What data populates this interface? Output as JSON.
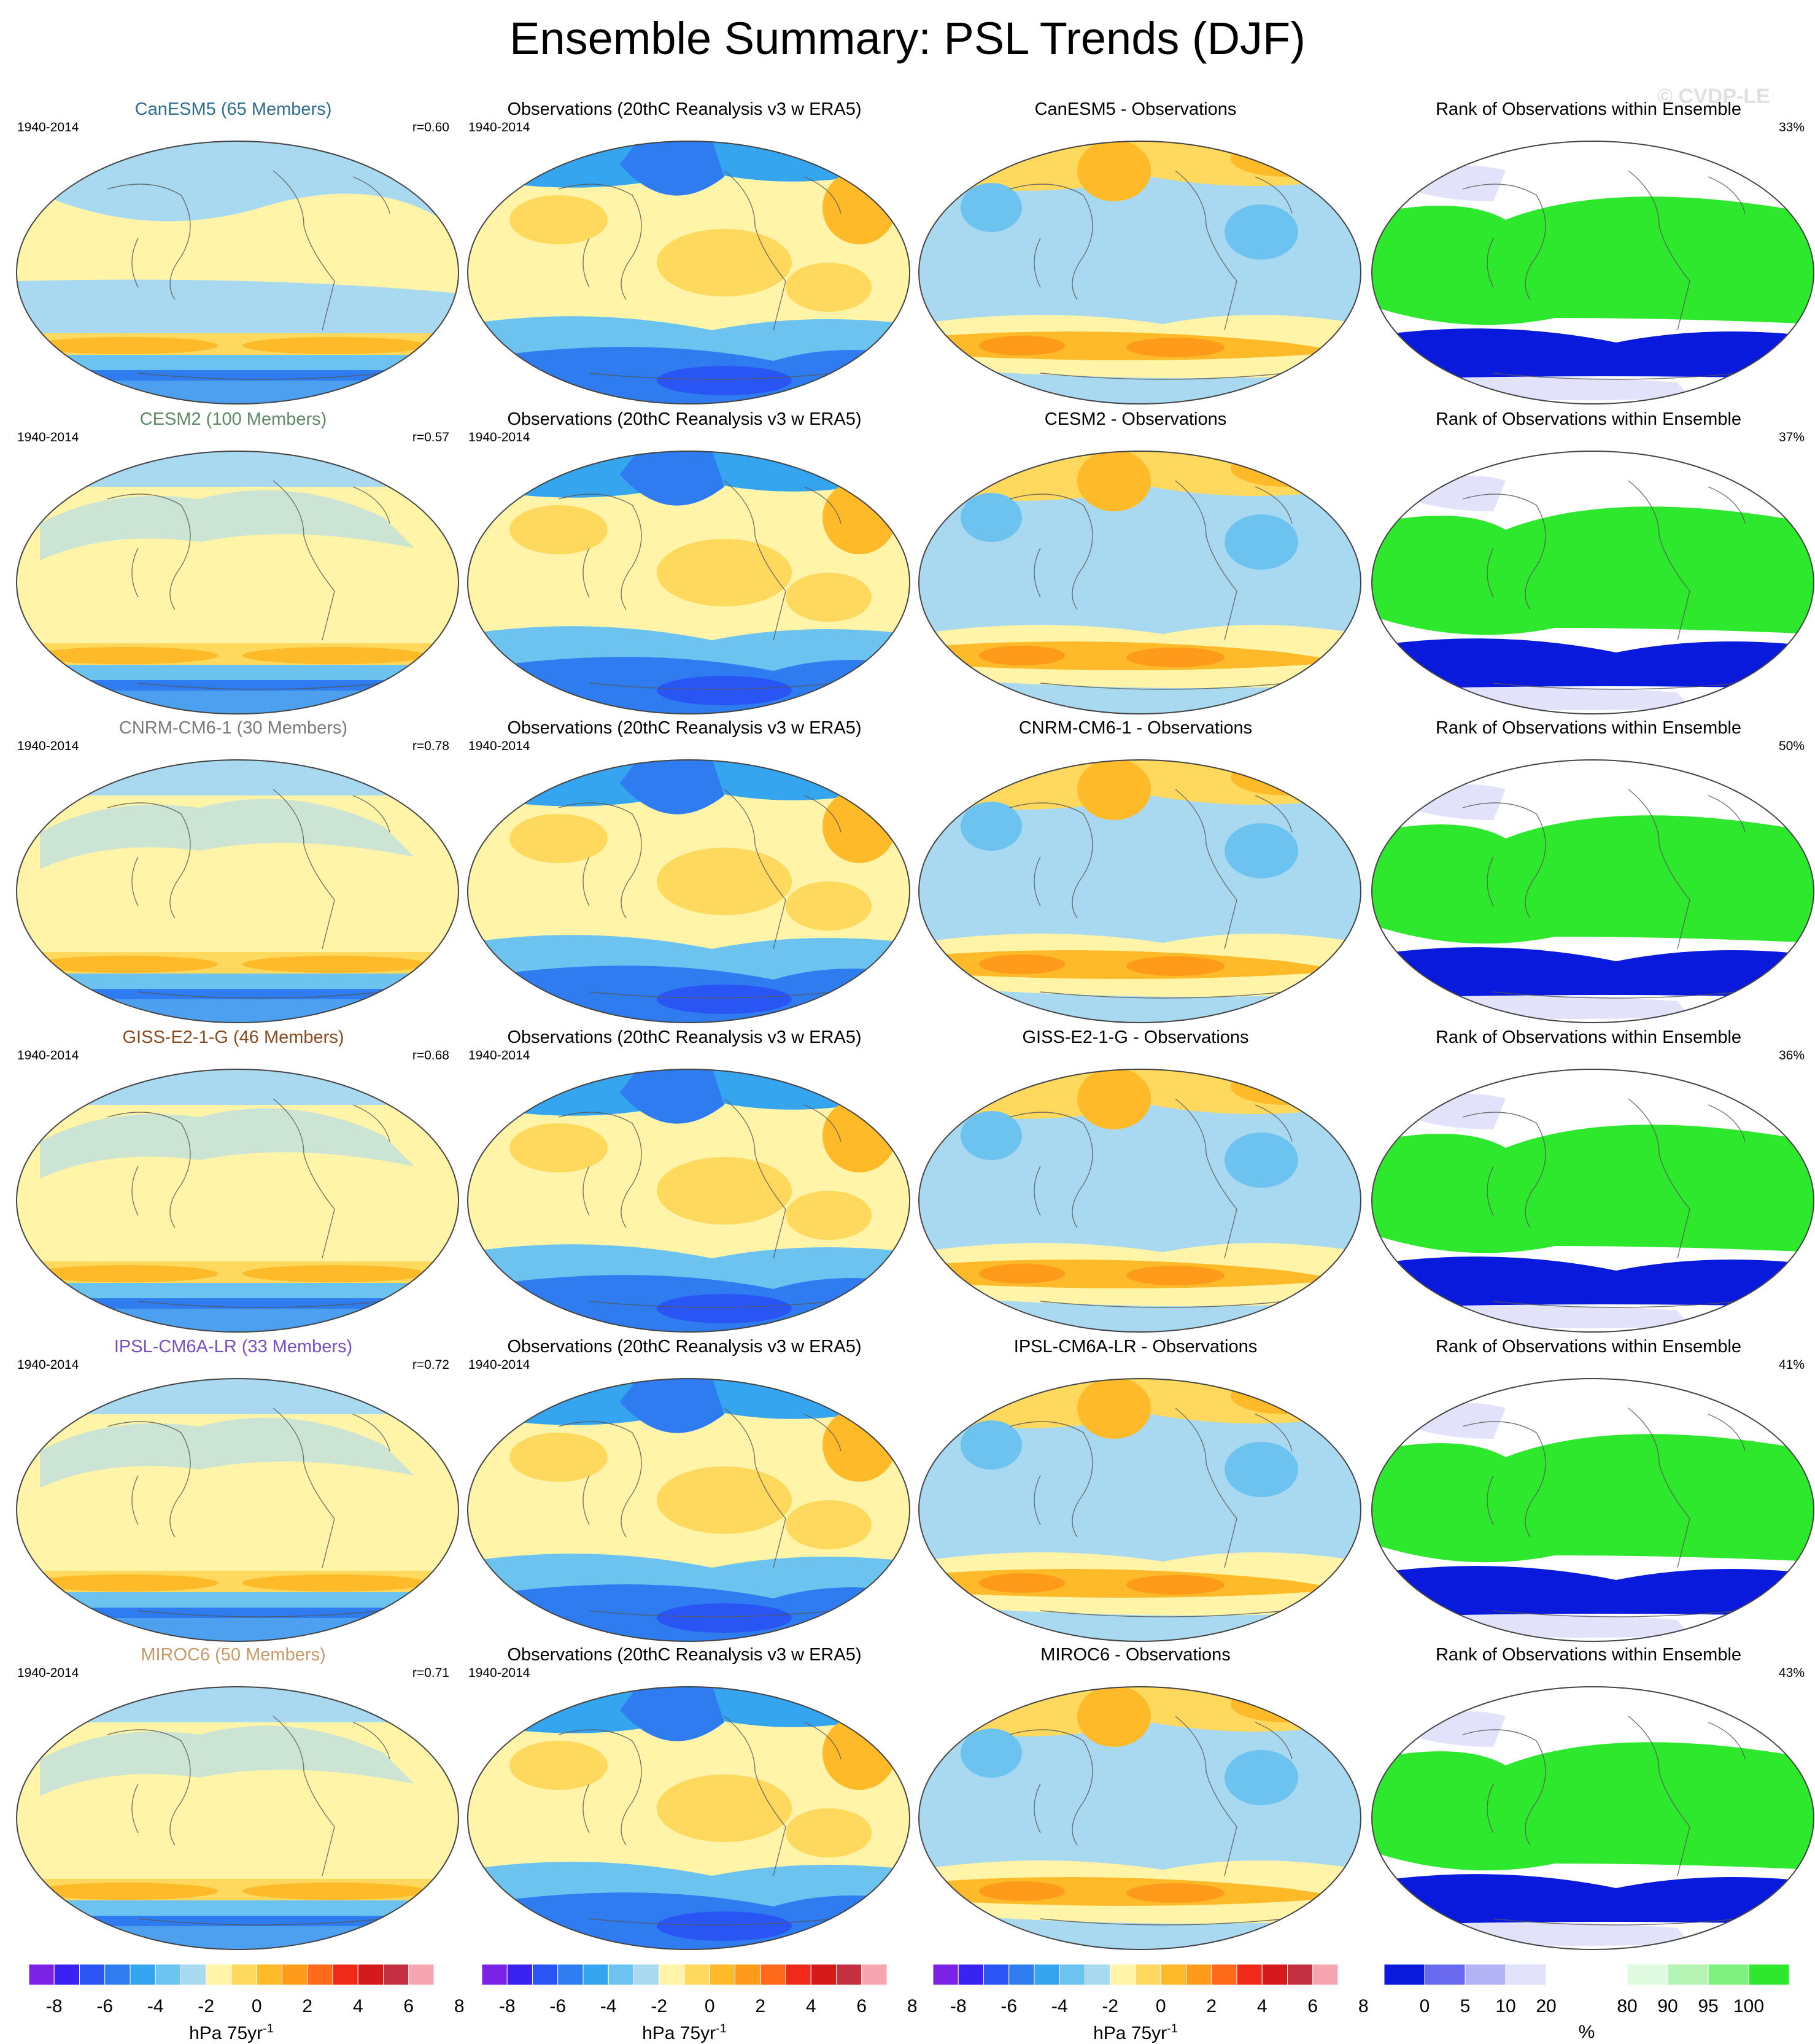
{
  "title": "Ensemble Summary: PSL Trends (DJF)",
  "watermark": "© CVDP-LE",
  "period": "1940-2014",
  "obs_title": "Observations (20thC Reanalysis v3 w ERA5)",
  "rank_title": "Rank of Observations within Ensemble",
  "rows": [
    {
      "model_title": "CanESM5 (65 Members)",
      "model_color": "#2f6e8e",
      "r": "r=0.60",
      "diff_title": "CanESM5 - Observations",
      "rank_pct": "33%"
    },
    {
      "model_title": "CESM2 (100 Members)",
      "model_color": "#5d8a63",
      "r": "r=0.57",
      "diff_title": "CESM2 - Observations",
      "rank_pct": "37%"
    },
    {
      "model_title": "CNRM-CM6-1 (30 Members)",
      "model_color": "#7a7a7a",
      "r": "r=0.78",
      "diff_title": "CNRM-CM6-1 - Observations",
      "rank_pct": "50%"
    },
    {
      "model_title": "GISS-E2-1-G (46 Members)",
      "model_color": "#8a4a22",
      "r": "r=0.68",
      "diff_title": "GISS-E2-1-G - Observations",
      "rank_pct": "36%"
    },
    {
      "model_title": "IPSL-CM6A-LR (33 Members)",
      "model_color": "#7a4fc0",
      "r": "r=0.72",
      "diff_title": "IPSL-CM6A-LR - Observations",
      "rank_pct": "41%"
    },
    {
      "model_title": "MIROC6 (50 Members)",
      "model_color": "#c79a6a",
      "r": "r=0.71",
      "diff_title": "MIROC6 - Observations",
      "rank_pct": "43%"
    }
  ],
  "trend_colorbar": {
    "colors": [
      "#7b22e6",
      "#3a22f2",
      "#2a55f5",
      "#2e7cf0",
      "#36a5f0",
      "#6cc3f0",
      "#a9d9f0",
      "#fff4a8",
      "#ffd85e",
      "#ffba2a",
      "#ff9a1a",
      "#ff6a1a",
      "#f02a1a",
      "#d41a1a",
      "#c43040",
      "#f5a5b0"
    ],
    "ticks": [
      "-8",
      "-6",
      "-4",
      "-2",
      "0",
      "2",
      "4",
      "6",
      "8"
    ],
    "unit": "hPa 75yr",
    "unit_sup": "-1"
  },
  "rank_colorbar": {
    "colors": [
      "#0a1adc",
      "#6a6af0",
      "#b2b2f4",
      "#e2e2fa",
      "#ffffff",
      "#ffffff",
      "#e0fae0",
      "#b6f4b6",
      "#7ff07f",
      "#2ee82e"
    ],
    "ticks": [
      "0",
      "5",
      "10",
      "20",
      "80",
      "90",
      "95",
      "100"
    ],
    "unit": "%"
  }
}
